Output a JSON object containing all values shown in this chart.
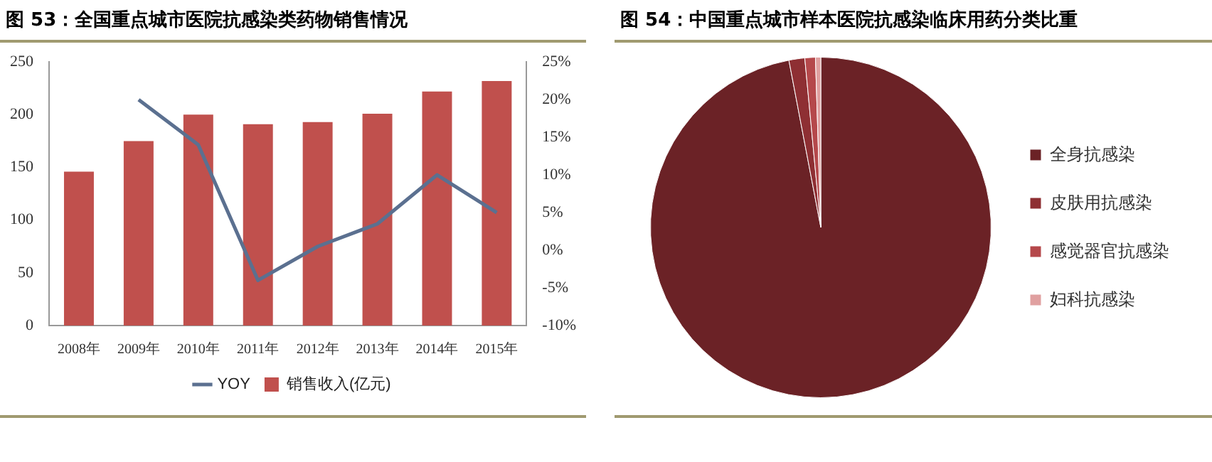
{
  "chart_data": [
    {
      "type": "bar",
      "title": "图 53：全国重点城市医院抗感染类药物销售情况",
      "categories": [
        "2008年",
        "2009年",
        "2010年",
        "2011年",
        "2012年",
        "2013年",
        "2014年",
        "2015年"
      ],
      "series": [
        {
          "type": "bar",
          "name": "销售收入(亿元)",
          "color": "#c0504d",
          "values": [
            146,
            175,
            200,
            191,
            193,
            201,
            222,
            232
          ]
        },
        {
          "type": "line",
          "name": "YOY",
          "color": "#5b7090",
          "axis": "y2",
          "values": [
            null,
            20,
            14,
            -4,
            0.5,
            3.5,
            10,
            5
          ]
        }
      ],
      "ylim": [
        0,
        250
      ],
      "yticks": [
        0,
        50,
        100,
        150,
        200,
        250
      ],
      "y2lim": [
        -10,
        25
      ],
      "y2ticks": [
        {
          "value": -10,
          "label": "-10%"
        },
        {
          "value": -5,
          "label": "-5%"
        },
        {
          "value": 0,
          "label": "0%"
        },
        {
          "value": 5,
          "label": "5%"
        },
        {
          "value": 10,
          "label": "10%"
        },
        {
          "value": 15,
          "label": "15%"
        },
        {
          "value": 20,
          "label": "20%"
        },
        {
          "value": 25,
          "label": "25%"
        }
      ],
      "legend": "bottom",
      "marker": "none"
    },
    {
      "type": "pie",
      "title": "图 54：中国重点城市样本医院抗感染临床用药分类比重",
      "categories": [
        "全身抗感染",
        "皮肤用抗感染",
        "感觉器官抗感染",
        "妇科抗感染"
      ],
      "values": [
        97,
        1.5,
        1,
        0.5
      ],
      "colors": [
        "#6b2226",
        "#8e2f33",
        "#b5484b",
        "#e0a0a0"
      ],
      "legend": "right"
    }
  ]
}
